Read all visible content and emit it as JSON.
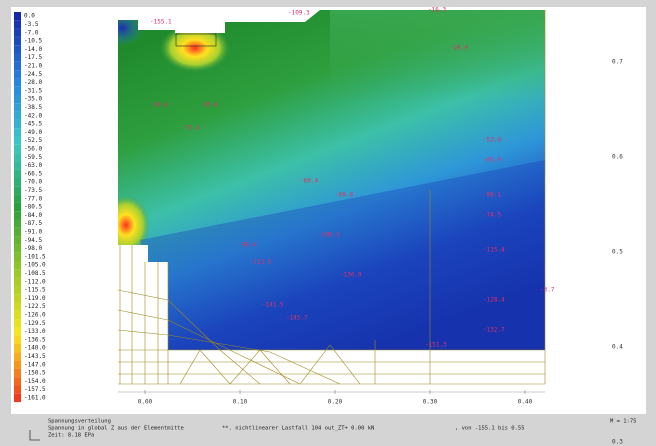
{
  "legend": {
    "values": [
      "0.0",
      "-3.5",
      "-7.0",
      "-10.5",
      "-14.0",
      "-17.5",
      "-21.0",
      "-24.5",
      "-28.0",
      "-31.5",
      "-35.0",
      "-38.5",
      "-42.0",
      "-45.5",
      "-49.0",
      "-52.5",
      "-56.0",
      "-59.5",
      "-63.0",
      "-66.5",
      "-70.0",
      "-73.5",
      "-77.0",
      "-80.5",
      "-84.0",
      "-87.5",
      "-91.0",
      "-94.5",
      "-98.0",
      "-101.5",
      "-105.0",
      "-108.5",
      "-112.0",
      "-115.5",
      "-119.0",
      "-122.5",
      "-126.0",
      "-129.5",
      "-133.0",
      "-136.5",
      "-140.0",
      "-143.5",
      "-147.0",
      "-150.5",
      "-154.0",
      "-157.5",
      "-161.0"
    ]
  },
  "x_axis": {
    "ticks": [
      "0.00",
      "0.10",
      "0.20",
      "0.30",
      "0.40"
    ]
  },
  "y_axis": {
    "ticks": [
      "0.7",
      "0.6",
      "0.5",
      "0.4",
      "0.3"
    ]
  },
  "plot_labels": [
    "-155.1",
    "-109.3",
    "-16.3",
    "-28.9",
    "-59.4",
    "-65.8",
    "-71.4",
    "-53.8",
    "-85.9",
    "-60.4",
    "-89.8",
    "-98.1",
    "-74.5",
    "-98.4",
    "-106.2",
    "-115.4",
    "-121.5",
    "-136.9",
    "-141.5",
    "-128.4",
    "-132.7",
    "-145.7",
    "-151.3",
    "-3.7"
  ],
  "footer": {
    "title": "Spannungsverteilung",
    "description": "Spannung in global Z aus der Elementmitte",
    "time": "Zeit: 8.18 EPa",
    "loadcase": "**. nichtlinearer Lastfall 104 out_ZT+ 0.00 kN",
    "range": ", von -155.1 bis 0.55",
    "scale": "M = 1:75"
  }
}
